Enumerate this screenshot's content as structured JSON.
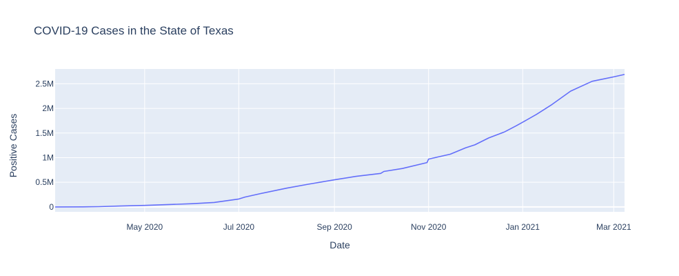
{
  "chart_data": {
    "type": "line",
    "title": "COVID-19 Cases in the State of Texas",
    "xlabel": "Date",
    "ylabel": "Positive Cases",
    "xlim": [
      "2020-03-04",
      "2021-03-08"
    ],
    "ylim": [
      -0.1,
      2.8
    ],
    "y_unit": "M",
    "x_ticks": [
      {
        "date": "2020-05-01",
        "label": "May 2020"
      },
      {
        "date": "2020-07-01",
        "label": "Jul 2020"
      },
      {
        "date": "2020-09-01",
        "label": "Sep 2020"
      },
      {
        "date": "2020-11-01",
        "label": "Nov 2020"
      },
      {
        "date": "2021-01-01",
        "label": "Jan 2021"
      },
      {
        "date": "2021-03-01",
        "label": "Mar 2021"
      }
    ],
    "y_ticks": [
      {
        "value": 0,
        "label": "0"
      },
      {
        "value": 0.5,
        "label": "0.5M"
      },
      {
        "value": 1,
        "label": "1M"
      },
      {
        "value": 1.5,
        "label": "1.5M"
      },
      {
        "value": 2,
        "label": "2M"
      },
      {
        "value": 2.5,
        "label": "2.5M"
      }
    ],
    "grid": true,
    "series": [
      {
        "color": "#636efa",
        "points": [
          {
            "x": "2020-03-04",
            "y": 0
          },
          {
            "x": "2020-03-22",
            "y": 0.001
          },
          {
            "x": "2020-04-01",
            "y": 0.005
          },
          {
            "x": "2020-04-15",
            "y": 0.017
          },
          {
            "x": "2020-05-01",
            "y": 0.03
          },
          {
            "x": "2020-05-15",
            "y": 0.045
          },
          {
            "x": "2020-06-01",
            "y": 0.066
          },
          {
            "x": "2020-06-15",
            "y": 0.09
          },
          {
            "x": "2020-07-01",
            "y": 0.16
          },
          {
            "x": "2020-07-05",
            "y": 0.2
          },
          {
            "x": "2020-07-15",
            "y": 0.27
          },
          {
            "x": "2020-08-01",
            "y": 0.38
          },
          {
            "x": "2020-08-15",
            "y": 0.46
          },
          {
            "x": "2020-09-01",
            "y": 0.55
          },
          {
            "x": "2020-09-15",
            "y": 0.62
          },
          {
            "x": "2020-10-01",
            "y": 0.68
          },
          {
            "x": "2020-10-03",
            "y": 0.72
          },
          {
            "x": "2020-10-15",
            "y": 0.78
          },
          {
            "x": "2020-10-31",
            "y": 0.9
          },
          {
            "x": "2020-11-01",
            "y": 0.97
          },
          {
            "x": "2020-11-15",
            "y": 1.07
          },
          {
            "x": "2020-11-25",
            "y": 1.2
          },
          {
            "x": "2020-12-01",
            "y": 1.26
          },
          {
            "x": "2020-12-10",
            "y": 1.4
          },
          {
            "x": "2020-12-20",
            "y": 1.52
          },
          {
            "x": "2020-12-28",
            "y": 1.65
          },
          {
            "x": "2021-01-01",
            "y": 1.72
          },
          {
            "x": "2021-01-10",
            "y": 1.88
          },
          {
            "x": "2021-01-20",
            "y": 2.08
          },
          {
            "x": "2021-02-01",
            "y": 2.35
          },
          {
            "x": "2021-02-15",
            "y": 2.55
          },
          {
            "x": "2021-03-01",
            "y": 2.64
          },
          {
            "x": "2021-03-08",
            "y": 2.69
          }
        ]
      }
    ]
  }
}
